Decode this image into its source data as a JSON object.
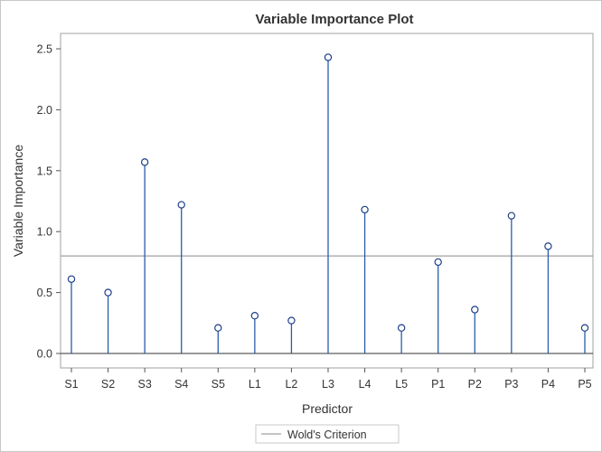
{
  "chart_data": {
    "type": "needle",
    "title": "Variable Importance Plot",
    "xlabel": "Predictor",
    "ylabel": "Variable Importance",
    "categories": [
      "S1",
      "S2",
      "S3",
      "S4",
      "S5",
      "L1",
      "L2",
      "L3",
      "L4",
      "L5",
      "P1",
      "P2",
      "P3",
      "P4",
      "P5"
    ],
    "values": [
      0.61,
      0.5,
      1.57,
      1.22,
      0.21,
      0.31,
      0.27,
      2.43,
      1.18,
      0.21,
      0.75,
      0.36,
      1.13,
      0.88,
      0.21
    ],
    "ylim": [
      -0.09,
      2.65
    ],
    "yticks": [
      0.0,
      0.5,
      1.0,
      1.5,
      2.0,
      2.5
    ],
    "ytick_labels": [
      "0.0",
      "0.5",
      "1.0",
      "1.5",
      "2.0",
      "2.5"
    ],
    "reference_line": {
      "name": "Wold's Criterion",
      "value": 0.8
    },
    "grid": false,
    "legend": {
      "placement": "bottom",
      "entries": [
        "Wold's Criterion"
      ]
    },
    "colors": {
      "needle": "#2a5caa",
      "reference": "#a0a0a0"
    }
  }
}
